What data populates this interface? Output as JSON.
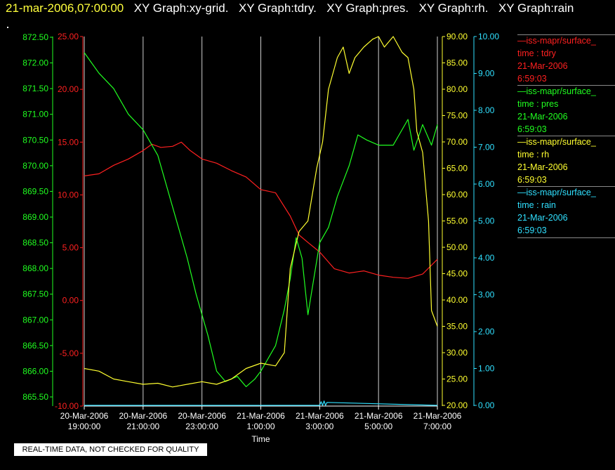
{
  "header": {
    "timestamp": "21-mar-2006,07:00:00",
    "graphs": [
      "XY Graph:xy-grid.",
      "XY Graph:tdry.",
      "XY Graph:pres.",
      "XY Graph:rh.",
      "XY Graph:rain"
    ]
  },
  "footer": {
    "quality_note": "REAL-TIME DATA, NOT CHECKED FOR QUALITY"
  },
  "legend": [
    {
      "source": "—iss-mapr/surface_",
      "var": "time : tdry",
      "date": "21-Mar-2006",
      "time": "6:59:03",
      "color": "#ff2020"
    },
    {
      "source": "—iss-mapr/surface_",
      "var": "time : pres",
      "date": "21-Mar-2006",
      "time": "6:59:03",
      "color": "#20ff20"
    },
    {
      "source": "—iss-mapr/surface_",
      "var": "time : rh",
      "date": "21-Mar-2006",
      "time": "6:59:03",
      "color": "#ffff30"
    },
    {
      "source": "—iss-mapr/surface_",
      "var": "time : rain",
      "date": "21-Mar-2006",
      "time": "6:59:03",
      "color": "#30e0ff"
    }
  ],
  "chart_data": {
    "type": "line",
    "xlabel": "Time",
    "x_ticks": [
      [
        "20-Mar-2006",
        "19:00:00"
      ],
      [
        "20-Mar-2006",
        "21:00:00"
      ],
      [
        "20-Mar-2006",
        "23:00:00"
      ],
      [
        "21-Mar-2006",
        "1:00:00"
      ],
      [
        "21-Mar-2006",
        "3:00:00"
      ],
      [
        "21-Mar-2006",
        "5:00:00"
      ],
      [
        "21-Mar-2006",
        "7:00:00"
      ]
    ],
    "x_range_hours": [
      0,
      12
    ],
    "grid": true,
    "axes": {
      "pres": {
        "color": "#20ff20",
        "range": [
          865.5,
          872.5
        ],
        "ticks": [
          "865.50",
          "866.00",
          "866.50",
          "867.00",
          "867.50",
          "868.00",
          "868.50",
          "869.00",
          "869.50",
          "870.00",
          "870.50",
          "871.00",
          "871.50",
          "872.00",
          "872.50"
        ]
      },
      "tdry": {
        "color": "#ff2020",
        "range": [
          -10,
          25
        ],
        "ticks": [
          "-10.00",
          "-5.00",
          "0.00",
          "5.00",
          "10.00",
          "15.00",
          "20.00",
          "25.00"
        ]
      },
      "rh": {
        "color": "#ffff30",
        "range": [
          20,
          93
        ],
        "ticks": [
          "20.00",
          "25.00",
          "30.00",
          "35.00",
          "40.00",
          "45.00",
          "50.00",
          "55.00",
          "60.00",
          "65.00",
          "70.00",
          "75.00",
          "80.00",
          "85.00",
          "90.00"
        ]
      },
      "rain": {
        "color": "#30e0ff",
        "range": [
          0,
          10.2
        ],
        "ticks": [
          "0.00",
          "1.00",
          "2.00",
          "3.00",
          "4.00",
          "5.00",
          "6.00",
          "7.00",
          "8.00",
          "9.00",
          "10.00"
        ]
      }
    },
    "series": [
      {
        "name": "tdry",
        "color": "#ff2020",
        "axis": "tdry",
        "x": [
          0,
          0.5,
          1,
          1.5,
          2,
          2.3,
          2.6,
          3,
          3.3,
          3.6,
          4,
          4.5,
          5,
          5.5,
          6,
          6.5,
          7,
          7.3,
          7.6,
          8,
          8.5,
          9,
          9.5,
          10,
          10.5,
          11,
          11.5,
          12
        ],
        "y": [
          11.8,
          12,
          12.8,
          13.4,
          14.2,
          14.8,
          14.5,
          14.6,
          15,
          14.2,
          13.4,
          13,
          12.3,
          11.7,
          10.5,
          10.2,
          8,
          6.2,
          5.5,
          4.6,
          3,
          2.6,
          2.8,
          2.4,
          2.2,
          2.1,
          2.5,
          3.9
        ]
      },
      {
        "name": "pres",
        "color": "#20ff20",
        "axis": "pres",
        "x": [
          0,
          0.5,
          1,
          1.5,
          2,
          2.5,
          3,
          3.5,
          3.8,
          4.2,
          4.5,
          4.8,
          5.2,
          5.5,
          5.8,
          6,
          6.5,
          6.8,
          7,
          7.2,
          7.4,
          7.6,
          8,
          8.3,
          8.6,
          9,
          9.3,
          9.6,
          10,
          10.5,
          11,
          11.2,
          11.5,
          11.8,
          12
        ],
        "y": [
          872.2,
          871.8,
          871.5,
          871,
          870.7,
          870.2,
          869.2,
          868.2,
          867.5,
          866.7,
          866,
          865.8,
          865.9,
          865.7,
          865.85,
          866,
          866.5,
          867.2,
          867.8,
          868.6,
          868.2,
          867.1,
          868.5,
          868.8,
          869.4,
          870,
          870.6,
          870.5,
          870.4,
          870.4,
          870.9,
          870.3,
          870.8,
          870.4,
          870.8
        ]
      },
      {
        "name": "rh",
        "color": "#ffff30",
        "axis": "rh",
        "x": [
          0,
          0.5,
          1,
          1.5,
          2,
          2.5,
          3,
          3.5,
          4,
          4.5,
          5,
          5.5,
          6,
          6.5,
          6.8,
          7,
          7.3,
          7.6,
          7.9,
          8.1,
          8.3,
          8.6,
          8.8,
          9,
          9.2,
          9.5,
          9.8,
          10,
          10.2,
          10.5,
          10.8,
          11,
          11.2,
          11.3,
          11.5,
          11.7,
          11.8,
          12
        ],
        "y": [
          27,
          26.5,
          25,
          24.5,
          24,
          24.2,
          23.5,
          24,
          24.5,
          24,
          25,
          27,
          28,
          27.5,
          30,
          46,
          53,
          55,
          65,
          70,
          80,
          86,
          88,
          83,
          86,
          88,
          89.5,
          90,
          88,
          91.5,
          87,
          86,
          80,
          72,
          68,
          55,
          38,
          35
        ]
      },
      {
        "name": "rain",
        "color": "#30e0ff",
        "axis": "rain",
        "x": [
          0,
          8,
          8.05,
          8.1,
          8.15,
          8.2,
          8.25,
          12
        ],
        "y": [
          0,
          0,
          0.1,
          0,
          0.12,
          0,
          0.08,
          0
        ]
      }
    ]
  }
}
